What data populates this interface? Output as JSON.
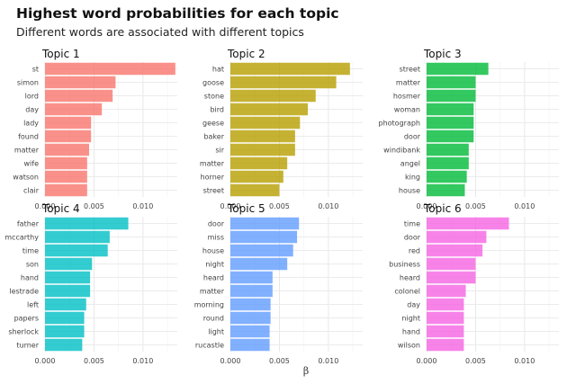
{
  "chart_data": {
    "type": "bar",
    "orientation": "horizontal",
    "title": "Highest word probabilities for each topic",
    "subtitle": "Different words are associated with different topics",
    "xlabel": "β",
    "xlim": [
      0,
      0.0135
    ],
    "xticks": [
      0.0,
      0.005,
      0.01
    ],
    "xtick_labels": [
      "0.000",
      "0.005",
      "0.010"
    ],
    "grid": true,
    "facets": [
      {
        "name": "Topic 1",
        "color": "#F8766D",
        "categories": [
          "st",
          "simon",
          "lord",
          "day",
          "lady",
          "found",
          "matter",
          "wife",
          "watson",
          "clair"
        ],
        "values": [
          0.0133,
          0.0072,
          0.0069,
          0.0058,
          0.0047,
          0.0047,
          0.0045,
          0.0043,
          0.0043,
          0.0043
        ]
      },
      {
        "name": "Topic 2",
        "color": "#B79F00",
        "categories": [
          "hat",
          "goose",
          "stone",
          "bird",
          "geese",
          "baker",
          "sir",
          "matter",
          "horner",
          "street"
        ],
        "values": [
          0.0122,
          0.0108,
          0.0087,
          0.0079,
          0.0071,
          0.0066,
          0.0066,
          0.0058,
          0.0054,
          0.005
        ]
      },
      {
        "name": "Topic 3",
        "color": "#00BA38",
        "categories": [
          "street",
          "matter",
          "hosmer",
          "woman",
          "photograph",
          "door",
          "windibank",
          "angel",
          "king",
          "house"
        ],
        "values": [
          0.0063,
          0.005,
          0.005,
          0.0048,
          0.0048,
          0.0048,
          0.0043,
          0.0043,
          0.0041,
          0.0039
        ]
      },
      {
        "name": "Topic 4",
        "color": "#00BFC4",
        "categories": [
          "father",
          "mccarthy",
          "time",
          "son",
          "hand",
          "lestrade",
          "left",
          "papers",
          "sherlock",
          "turner"
        ],
        "values": [
          0.0085,
          0.0066,
          0.0064,
          0.0048,
          0.0046,
          0.0046,
          0.0042,
          0.004,
          0.004,
          0.0038
        ]
      },
      {
        "name": "Topic 5",
        "color": "#619CFF",
        "categories": [
          "door",
          "miss",
          "house",
          "night",
          "heard",
          "matter",
          "morning",
          "round",
          "light",
          "rucastle"
        ],
        "values": [
          0.007,
          0.0068,
          0.0064,
          0.0058,
          0.0043,
          0.0043,
          0.0041,
          0.0041,
          0.004,
          0.004
        ]
      },
      {
        "name": "Topic 6",
        "color": "#F564E3",
        "categories": [
          "time",
          "door",
          "red",
          "business",
          "heard",
          "colonel",
          "day",
          "night",
          "hand",
          "wilson"
        ],
        "values": [
          0.0084,
          0.0061,
          0.0057,
          0.005,
          0.005,
          0.004,
          0.0038,
          0.0038,
          0.0038,
          0.0038
        ]
      }
    ]
  }
}
